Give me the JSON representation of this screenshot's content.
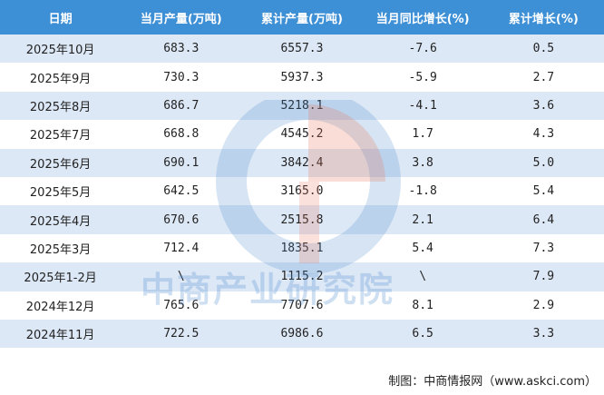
{
  "table": {
    "headers": [
      "日期",
      "当月产量(万吨)",
      "累计产量(万吨)",
      "当月同比增长(%)",
      "累计增长(%)"
    ],
    "rows": [
      [
        "2025年10月",
        "683.3",
        "6557.3",
        "-7.6",
        "0.5"
      ],
      [
        "2025年9月",
        "730.3",
        "5937.3",
        "-5.9",
        "2.7"
      ],
      [
        "2025年8月",
        "686.7",
        "5218.1",
        "-4.1",
        "3.6"
      ],
      [
        "2025年7月",
        "668.8",
        "4545.2",
        "1.7",
        "4.3"
      ],
      [
        "2025年6月",
        "690.1",
        "3842.4",
        "3.8",
        "5.0"
      ],
      [
        "2025年5月",
        "642.5",
        "3165.0",
        "-1.8",
        "5.4"
      ],
      [
        "2025年4月",
        "670.6",
        "2515.8",
        "2.1",
        "6.4"
      ],
      [
        "2025年3月",
        "712.4",
        "1835.1",
        "5.4",
        "7.3"
      ],
      [
        "2025年1-2月",
        "\\",
        "1115.2",
        "\\",
        "7.9"
      ],
      [
        "2024年12月",
        "765.6",
        "7707.6",
        "8.1",
        "2.9"
      ],
      [
        "2024年11月",
        "722.5",
        "6986.6",
        "6.5",
        "3.3"
      ]
    ]
  },
  "watermark": "中商产业研究院",
  "footer": "制图：中商情报网（www.askci.com）"
}
